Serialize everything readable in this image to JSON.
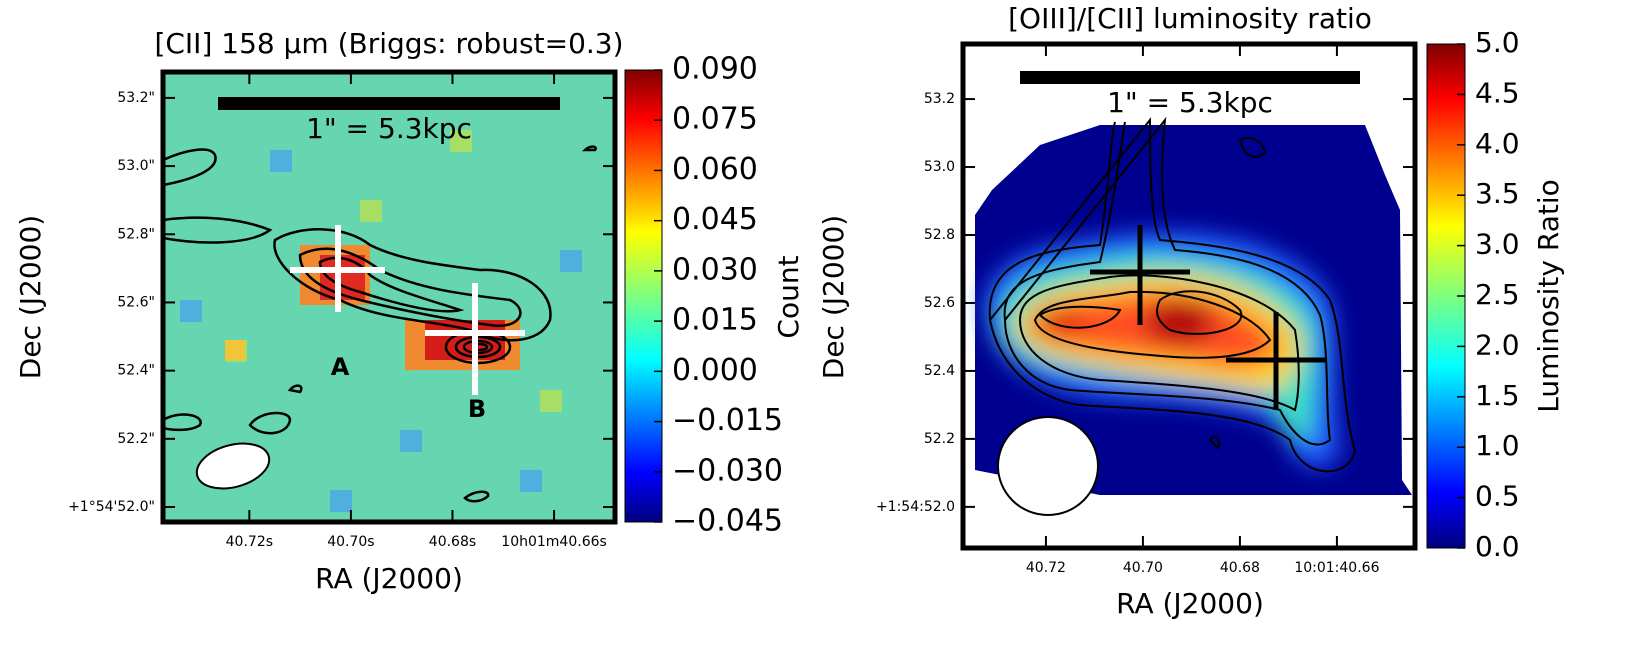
{
  "chart_data": [
    {
      "type": "image",
      "title": "[CII] 158 μm (Briggs: robust=0.3)",
      "xlabel": "RA (J2000)",
      "ylabel": "Dec (J2000)",
      "xlim": [
        40.737,
        40.648
      ],
      "xticks": [
        {
          "value": 40.72,
          "label": "40.72s"
        },
        {
          "value": 40.7,
          "label": "40.70s"
        },
        {
          "value": 40.68,
          "label": "40.68s"
        },
        {
          "value": 40.66,
          "label": "10h01m40.66s"
        }
      ],
      "ylim": [
        51.956,
        53.276
      ],
      "yticks": [
        {
          "value": 52.0,
          "label": "+1°54'52.0\""
        },
        {
          "value": 52.2,
          "label": "52.2\""
        },
        {
          "value": 52.4,
          "label": "52.4\""
        },
        {
          "value": 52.6,
          "label": "52.6\""
        },
        {
          "value": 52.8,
          "label": "52.8\""
        },
        {
          "value": 53.0,
          "label": "53.0\""
        },
        {
          "value": 53.2,
          "label": "53.2\""
        }
      ],
      "colormap": "jet",
      "clabel": "Count",
      "clim": [
        -0.045,
        0.09
      ],
      "cticks": [
        {
          "value": -0.045,
          "label": "−0.045"
        },
        {
          "value": -0.03,
          "label": "−0.030"
        },
        {
          "value": -0.015,
          "label": "−0.015"
        },
        {
          "value": 0,
          "label": "0.000"
        },
        {
          "value": 0.015,
          "label": "0.015"
        },
        {
          "value": 0.03,
          "label": "0.030"
        },
        {
          "value": 0.045,
          "label": "0.045"
        },
        {
          "value": 0.06,
          "label": "0.060"
        },
        {
          "value": 0.075,
          "label": "0.075"
        },
        {
          "value": 0.09,
          "label": "0.090"
        }
      ],
      "annotations": [
        "1\" = 5.3kpc",
        "A",
        "B"
      ]
    },
    {
      "type": "image",
      "title": "[OIII]/[CII] luminosity ratio",
      "xlabel": "RA (J2000)",
      "ylabel": "Dec (J2000)",
      "xlim": [
        40.7371,
        40.6439
      ],
      "xticks": [
        40.72,
        {
          "value": 40.7,
          "label": "40.70"
        },
        40.68,
        {
          "value": 40.66,
          "label": "10:01:40.66"
        }
      ],
      "ylim": [
        51.879,
        53.362
      ],
      "yticks": [
        {
          "value": 52.0,
          "label": "+1:54:52.0"
        },
        52.2,
        52.4,
        52.6,
        52.8,
        {
          "value": 53.0,
          "label": "53.0"
        },
        53.2
      ],
      "colormap": "jet",
      "clabel": "Luminosity Ratio",
      "clim": [
        0,
        5
      ],
      "cticks": [
        {
          "value": 0,
          "label": "0.0"
        },
        0.5,
        {
          "value": 1,
          "label": "1.0"
        },
        1.5,
        {
          "value": 2,
          "label": "2.0"
        },
        2.5,
        {
          "value": 3,
          "label": "3.0"
        },
        3.5,
        {
          "value": 4,
          "label": "4.0"
        },
        4.5,
        {
          "value": 5,
          "label": "5.0"
        }
      ],
      "annotations": [
        "1\" = 5.3kpc"
      ]
    }
  ]
}
